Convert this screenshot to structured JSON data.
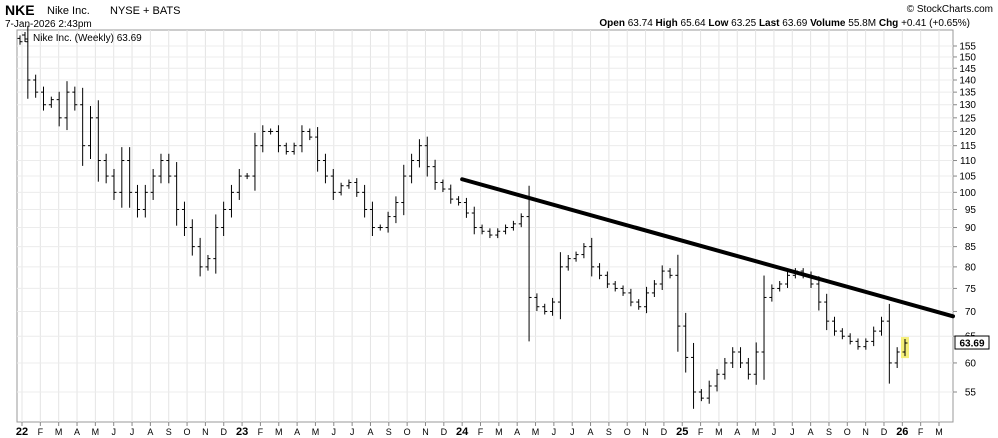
{
  "header": {
    "symbol": "NKE",
    "company": "Nike Inc.",
    "exchange": "NYSE + BATS",
    "datetime": "7-Jan-2026 2:43pm",
    "copyright": "© StockCharts.com",
    "stats": [
      {
        "label": "Open",
        "value": "63.74"
      },
      {
        "label": "High",
        "value": "65.64"
      },
      {
        "label": "Low",
        "value": "63.25"
      },
      {
        "label": "Last",
        "value": "63.69"
      },
      {
        "label": "Volume",
        "value": "55.8M"
      },
      {
        "label": "Chg",
        "value": "+0.41 (+0.65%)"
      }
    ]
  },
  "legend": {
    "label": "Nike Inc. (Weekly) 63.69"
  },
  "last_label": "63.69",
  "chart_data": {
    "type": "ohlc",
    "title": "Nike Inc. (Weekly) 63.69",
    "y_scale": "log",
    "ylim": [
      50,
      158
    ],
    "y_ticks": [
      55,
      60,
      65,
      70,
      75,
      80,
      85,
      90,
      95,
      100,
      105,
      110,
      115,
      120,
      125,
      130,
      135,
      140,
      145,
      150,
      155
    ],
    "x_labels": [
      {
        "label": "22",
        "year": true
      },
      {
        "label": "F"
      },
      {
        "label": "M"
      },
      {
        "label": "A"
      },
      {
        "label": "M"
      },
      {
        "label": "J"
      },
      {
        "label": "J"
      },
      {
        "label": "A"
      },
      {
        "label": "S"
      },
      {
        "label": "O"
      },
      {
        "label": "N"
      },
      {
        "label": "D"
      },
      {
        "label": "23",
        "year": true
      },
      {
        "label": "F"
      },
      {
        "label": "M"
      },
      {
        "label": "A"
      },
      {
        "label": "M"
      },
      {
        "label": "J"
      },
      {
        "label": "J"
      },
      {
        "label": "A"
      },
      {
        "label": "S"
      },
      {
        "label": "O"
      },
      {
        "label": "N"
      },
      {
        "label": "D"
      },
      {
        "label": "24",
        "year": true
      },
      {
        "label": "F"
      },
      {
        "label": "M"
      },
      {
        "label": "A"
      },
      {
        "label": "M"
      },
      {
        "label": "J"
      },
      {
        "label": "J"
      },
      {
        "label": "A"
      },
      {
        "label": "S"
      },
      {
        "label": "O"
      },
      {
        "label": "N"
      },
      {
        "label": "D"
      },
      {
        "label": "25",
        "year": true
      },
      {
        "label": "F"
      },
      {
        "label": "M"
      },
      {
        "label": "A"
      },
      {
        "label": "M"
      },
      {
        "label": "J"
      },
      {
        "label": "J"
      },
      {
        "label": "A"
      },
      {
        "label": "S"
      },
      {
        "label": "O"
      },
      {
        "label": "N"
      },
      {
        "label": "D"
      },
      {
        "label": "26",
        "year": true
      },
      {
        "label": "F"
      },
      {
        "label": "M"
      }
    ],
    "weekly_path": [
      157,
      140,
      135,
      130,
      132,
      125,
      135,
      130,
      115,
      125,
      110,
      105,
      100,
      110,
      100,
      95,
      100,
      105,
      110,
      105,
      95,
      90,
      85,
      80,
      82,
      90,
      95,
      100,
      105,
      105,
      115,
      120,
      120,
      115,
      113,
      115,
      120,
      118,
      110,
      105,
      100,
      102,
      103,
      100,
      95,
      90,
      90,
      93,
      97,
      105,
      110,
      115,
      108,
      103,
      101,
      98,
      97,
      94,
      90,
      89,
      88,
      89,
      90,
      91,
      93,
      73,
      71,
      70,
      72,
      80,
      82,
      83,
      85,
      80,
      78,
      76,
      75,
      74,
      72,
      71,
      74,
      76,
      79,
      78,
      67,
      61,
      55,
      54,
      56,
      58,
      60,
      62,
      60,
      58,
      62,
      73,
      75,
      76,
      78,
      79,
      78,
      76,
      72,
      68,
      66,
      65,
      64,
      63,
      64,
      66,
      68,
      60,
      62,
      63.69
    ],
    "trendline": {
      "start": {
        "x": "Jan 2024",
        "y": 104
      },
      "end": {
        "x": "Mar 2026",
        "y": 69
      }
    },
    "colors": {
      "bars": "#000000",
      "trendline": "#000000",
      "last_bar": "#f5ef7a"
    }
  }
}
